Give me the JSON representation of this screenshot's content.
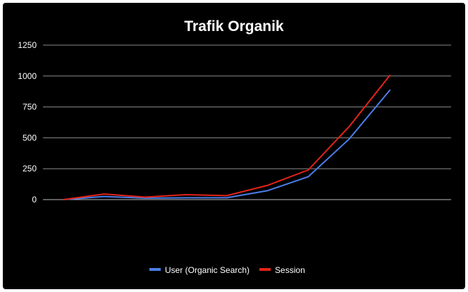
{
  "chart_data": {
    "type": "line",
    "title": "Trafik Organik",
    "xlabel": "",
    "ylabel": "",
    "ylim": [
      0,
      1250
    ],
    "yticks": [
      0,
      250,
      500,
      750,
      1000,
      1250
    ],
    "grid": true,
    "legend_position": "bottom",
    "x": [
      1,
      2,
      3,
      4,
      5,
      6,
      7,
      8,
      9,
      10
    ],
    "series": [
      {
        "name": "User (Organic Search)",
        "color": "#4a7ee8",
        "values": [
          0,
          25,
          12,
          15,
          15,
          72,
          185,
          490,
          885,
          null
        ]
      },
      {
        "name": "Session",
        "color": "#e2231a",
        "values": [
          0,
          45,
          20,
          40,
          32,
          115,
          240,
          590,
          1005,
          null
        ]
      }
    ]
  }
}
